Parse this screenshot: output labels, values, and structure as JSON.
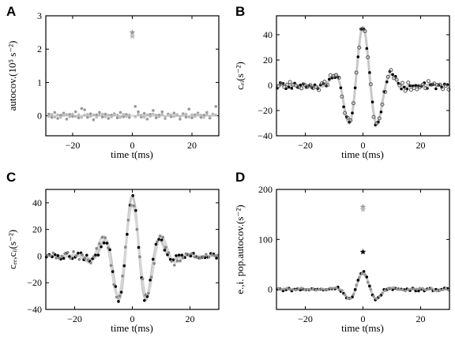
{
  "chart_data": [
    {
      "panel": "A",
      "type": "scatter",
      "xlabel": "time t(ms)",
      "ylabel": "autocov.(10⁵ s⁻²)",
      "xlim": [
        -29,
        29
      ],
      "ylim": [
        -0.6,
        3.0
      ],
      "xticks": [
        -20,
        0,
        20
      ],
      "yticks": [
        0,
        1,
        2,
        3
      ],
      "grid": false,
      "series": [
        {
          "color": "#9a9a9a",
          "marker": "dot",
          "x": [
            -28,
            -27,
            -26,
            -25,
            -24,
            -23,
            -22,
            -21,
            -20,
            -19,
            -18,
            -17,
            -16,
            -15,
            -14,
            -13,
            -12,
            -11,
            -10,
            -9,
            -8,
            -7,
            -6,
            -5,
            -4,
            -3,
            -2,
            -1,
            1,
            2,
            3,
            4,
            5,
            6,
            7,
            8,
            9,
            10,
            11,
            12,
            13,
            14,
            15,
            16,
            17,
            18,
            19,
            20,
            21,
            22,
            23,
            24,
            25,
            26,
            27,
            28
          ],
          "y": [
            0.05,
            -0.05,
            0.1,
            -0.08,
            0.02,
            0.08,
            -0.1,
            0.04,
            -0.02,
            0.12,
            -0.06,
            0.22,
            0.18,
            -0.05,
            0.06,
            -0.12,
            0.03,
            0.1,
            -0.04,
            0.05,
            -0.08,
            0.02,
            0.06,
            -0.06,
            0.1,
            -0.03,
            0.04,
            -0.05,
            0.28,
            0.12,
            -0.04,
            0.07,
            -0.1,
            0.04,
            0.16,
            -0.06,
            0.02,
            0.12,
            -0.08,
            0.05,
            -0.03,
            0.08,
            0.02,
            -0.1,
            0.06,
            -0.04,
            0.2,
            -0.06,
            0.03,
            0.08,
            -0.05,
            0.02,
            0.1,
            -0.07,
            0.05,
            0.28
          ]
        },
        {
          "color": "#bbbbbb",
          "marker": "dot",
          "x": [
            -28,
            -27,
            -26,
            -25,
            -24,
            -23,
            -22,
            -21,
            -20,
            -19,
            -18,
            -17,
            -16,
            -15,
            -14,
            -13,
            -12,
            -11,
            -10,
            -9,
            -8,
            -7,
            -6,
            -5,
            -4,
            -3,
            -2,
            -1,
            1,
            2,
            3,
            4,
            5,
            6,
            7,
            8,
            9,
            10,
            11,
            12,
            13,
            14,
            15,
            16,
            17,
            18,
            19,
            20,
            21,
            22,
            23,
            24,
            25,
            26,
            27,
            28
          ],
          "y": [
            -0.02,
            0.04,
            -0.04,
            0.03,
            -0.05,
            0.02,
            0.04,
            -0.03,
            0.05,
            -0.02,
            0.03,
            -0.05,
            0.02,
            0.04,
            -0.02,
            0.03,
            -0.04,
            0.02,
            0.05,
            -0.03,
            0.02,
            -0.04,
            0.03,
            0.02,
            -0.05,
            0.04,
            -0.02,
            0.03,
            -0.03,
            0.04,
            0.02,
            -0.04,
            0.03,
            -0.02,
            0.05,
            0.02,
            -0.03,
            0.04,
            -0.05,
            0.02,
            0.03,
            -0.02,
            0.04,
            -0.03,
            0.02,
            0.05,
            -0.04,
            0.03,
            -0.02,
            0.04,
            0.02,
            -0.05,
            0.03,
            -0.02,
            0.04,
            0.02
          ]
        },
        {
          "color": "#999999",
          "marker": "star",
          "x": [
            0
          ],
          "y": [
            2.5
          ]
        },
        {
          "color": "#bbbbbb",
          "marker": "star",
          "x": [
            0
          ],
          "y": [
            2.38
          ]
        }
      ]
    },
    {
      "panel": "B",
      "type": "line",
      "xlabel": "time t(ms)",
      "ylabel": "cₑᵢ(s⁻²)",
      "xlim": [
        -30,
        30
      ],
      "ylim": [
        -40,
        55
      ],
      "xticks": [
        -20,
        0,
        20
      ],
      "yticks": [
        -40,
        -20,
        0,
        20,
        40
      ],
      "grid": false,
      "curve": {
        "color": "#c8c8c8",
        "amplitude": 46,
        "sigma": 5.5,
        "period": 10.5
      },
      "series": [
        {
          "color": "#000000",
          "marker": "dot",
          "jitter": 3.0,
          "offset": 0.3
        },
        {
          "color": "#555555",
          "marker": "ring",
          "jitter": 3.5,
          "offset": 0.7
        }
      ],
      "xrange": [
        -30,
        30
      ]
    },
    {
      "panel": "C",
      "type": "line",
      "xlabel": "time t(ms)",
      "ylabel": "cₑₑ,cᵢᵢ(s⁻²)",
      "xlim": [
        -30,
        30
      ],
      "ylim": [
        -40,
        50
      ],
      "xticks": [
        -20,
        0,
        20
      ],
      "yticks": [
        -40,
        -20,
        0,
        20,
        40
      ],
      "grid": false,
      "curves": [
        {
          "color": "#c4c4c4",
          "amplitude": 45,
          "sigma": 6.0,
          "period": 10.0
        },
        {
          "color": "#d6d6d6",
          "amplitude": 38,
          "sigma": 7.5,
          "period": 10.5
        }
      ],
      "series": [
        {
          "color": "#000000",
          "marker": "dot",
          "jitter": 2.5,
          "offset": 0.2,
          "curve": 0
        },
        {
          "color": "#888888",
          "marker": "dot",
          "jitter": 2.5,
          "offset": 0.6,
          "curve": 1
        }
      ],
      "xrange": [
        -30,
        30
      ]
    },
    {
      "panel": "D",
      "type": "line",
      "xlabel": "time t(ms)",
      "ylabel": "e.,i. pop.autocov.(s⁻²)",
      "xlim": [
        -30,
        30
      ],
      "ylim": [
        -40,
        200
      ],
      "xticks": [
        -20,
        0,
        20
      ],
      "yticks": [
        0,
        100,
        200
      ],
      "grid": false,
      "curve": {
        "color": "#c8c8c8",
        "amplitude": 34,
        "sigma": 4.5,
        "period": 10.5
      },
      "series": [
        {
          "color": "#000000",
          "marker": "dot",
          "jitter": 3.0,
          "offset": 0.3
        },
        {
          "color": "#999999",
          "marker": "dot",
          "jitter": 3.0,
          "offset": 0.7
        }
      ],
      "stars": [
        {
          "color": "#999999",
          "x": 0,
          "y": 165
        },
        {
          "color": "#bbbbbb",
          "x": 0,
          "y": 160
        },
        {
          "color": "#000000",
          "x": 0,
          "y": 75
        }
      ],
      "xrange": [
        -30,
        30
      ]
    }
  ]
}
